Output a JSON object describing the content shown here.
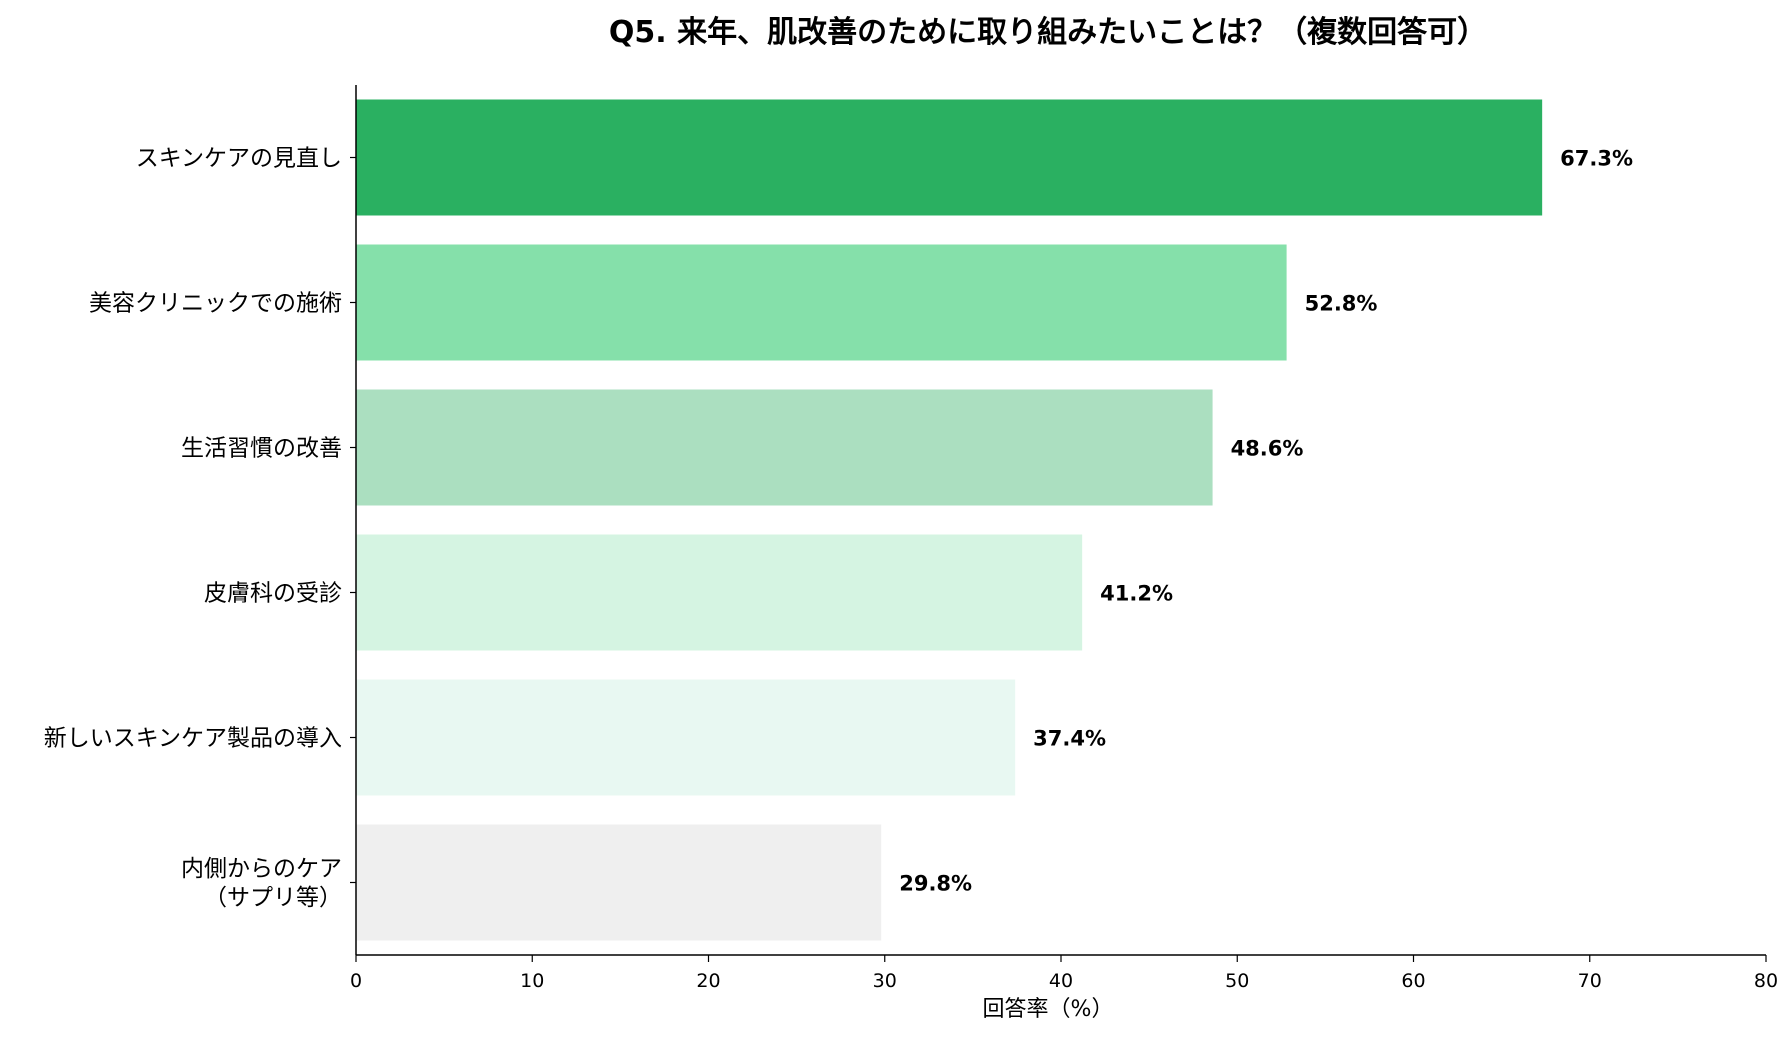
{
  "chart_data": {
    "type": "bar",
    "orientation": "horizontal",
    "title": "Q5. 来年、肌改善のために取り組みたいことは？（複数回答可）",
    "xlabel": "回答率（%）",
    "ylabel": "",
    "xlim": [
      0,
      80
    ],
    "x_ticks": [
      0,
      10,
      20,
      30,
      40,
      50,
      60,
      70,
      80
    ],
    "grid": false,
    "legend": "none",
    "categories": [
      [
        "スキンケアの見直し"
      ],
      [
        "美容クリニックでの施術"
      ],
      [
        "生活習慣の改善"
      ],
      [
        "皮膚科の受診"
      ],
      [
        "新しいスキンケア製品の導入"
      ],
      [
        "内側からのケア",
        "（サプリ等）"
      ]
    ],
    "values": [
      67.3,
      52.8,
      48.6,
      41.2,
      37.4,
      29.8
    ],
    "value_labels": [
      "67.3%",
      "52.8%",
      "48.6%",
      "41.2%",
      "37.4%",
      "29.8%"
    ],
    "colors": [
      "#2ab061",
      "#85e0aa",
      "#abdfc0",
      "#d5f4e2",
      "#e8f8f2",
      "#efefef"
    ]
  }
}
